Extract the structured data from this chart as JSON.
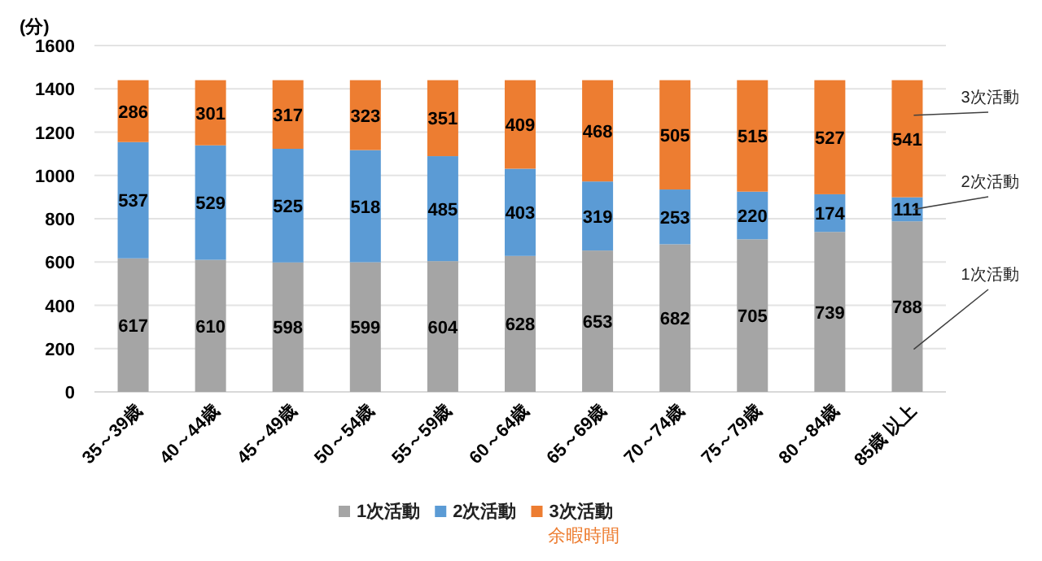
{
  "chart_data": {
    "type": "bar",
    "stacked": true,
    "ylabel": "(分)",
    "categories": [
      "35～39歳",
      "40～44歳",
      "45～49歳",
      "50～54歳",
      "55～59歳",
      "60～64歳",
      "65～69歳",
      "70～74歳",
      "75～79歳",
      "80～84歳",
      "85歳 以上"
    ],
    "series": [
      {
        "name": "1次活動",
        "color": "#a5a5a5",
        "values": [
          617,
          610,
          598,
          599,
          604,
          628,
          653,
          682,
          705,
          739,
          788
        ]
      },
      {
        "name": "2次活動",
        "color": "#5b9bd5",
        "values": [
          537,
          529,
          525,
          518,
          485,
          403,
          319,
          253,
          220,
          174,
          111
        ]
      },
      {
        "name": "3次活動",
        "color": "#ed7d31",
        "values": [
          286,
          301,
          317,
          323,
          351,
          409,
          468,
          505,
          515,
          527,
          541
        ]
      }
    ],
    "ylim": [
      0,
      1600
    ],
    "yticks": [
      0,
      200,
      400,
      600,
      800,
      1000,
      1200,
      1400,
      1600
    ],
    "grid": "y",
    "data_labels": true,
    "legend": "bottom",
    "annotations": [
      "余暇時間"
    ]
  }
}
